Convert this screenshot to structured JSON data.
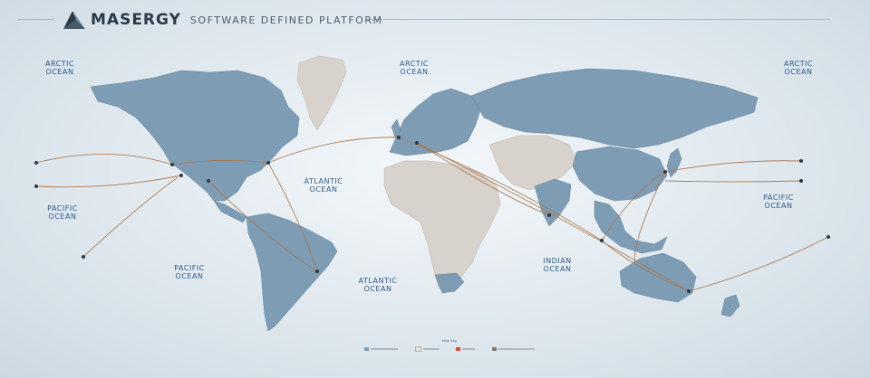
{
  "header": {
    "brand": "MASERGY",
    "tagline": "SOFTWARE DEFINED PLATFORM",
    "logo_icon": "masergy-triangle-logo-icon"
  },
  "oceans": [
    {
      "id": "arctic-west",
      "line1": "ARCTIC",
      "line2": "OCEAN"
    },
    {
      "id": "arctic-center",
      "line1": "ARCTIC",
      "line2": "OCEAN"
    },
    {
      "id": "arctic-east",
      "line1": "ARCTIC",
      "line2": "OCEAN"
    },
    {
      "id": "pacific-west",
      "line1": "PACIFIC",
      "line2": "OCEAN"
    },
    {
      "id": "pacific-south",
      "line1": "PACIFIC",
      "line2": "OCEAN"
    },
    {
      "id": "atlantic-north",
      "line1": "ATLANTIC",
      "line2": "OCEAN"
    },
    {
      "id": "atlantic-south",
      "line1": "ATLANTIC",
      "line2": "OCEAN"
    },
    {
      "id": "indian",
      "line1": "INDIAN",
      "line2": "OCEAN"
    },
    {
      "id": "pacific-east",
      "line1": "PACIFIC",
      "line2": "OCEAN"
    }
  ],
  "legend": {
    "title": "Map Key",
    "swatch_colors": [
      "#7e9db5",
      "#e8e2dc",
      "#c8553d",
      "#8a7a6a"
    ]
  },
  "colors": {
    "land_served": "#7e9db5",
    "land_other": "#d8d2cc",
    "route": "#a8744a",
    "node": "#2b3a47",
    "ocean_text": "#2f5a86"
  }
}
